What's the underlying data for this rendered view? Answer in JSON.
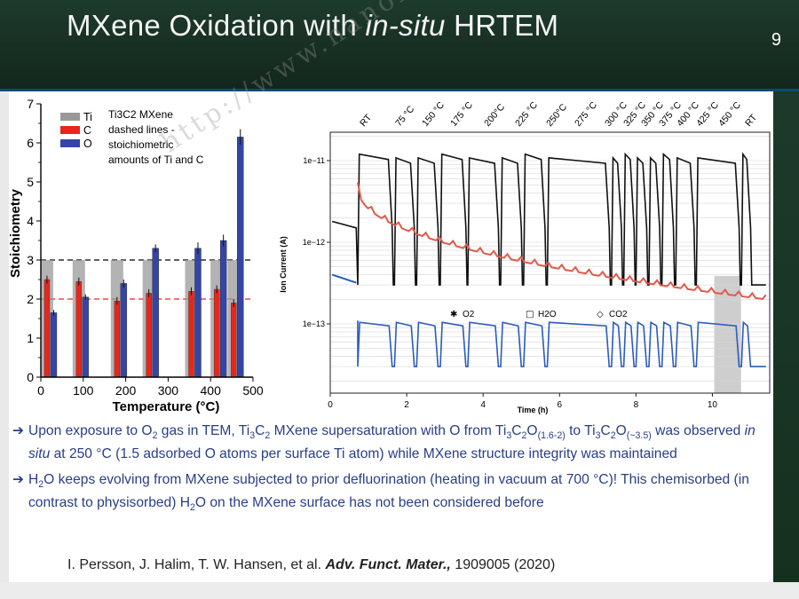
{
  "slide": {
    "title_pre": "MXene Oxidation with ",
    "title_em": "in-situ",
    "title_post": " HRTEM",
    "number": "9"
  },
  "chart_data": [
    {
      "type": "bar",
      "xlabel": "Temperature (°C)",
      "ylabel": "Stoichiometry",
      "xlim": [
        0,
        500
      ],
      "ylim": [
        0,
        7
      ],
      "xticks": [
        0,
        100,
        200,
        300,
        400,
        500
      ],
      "yticks": [
        0,
        1,
        2,
        3,
        4,
        5,
        6,
        7
      ],
      "x": [
        25,
        100,
        190,
        265,
        365,
        425,
        465
      ],
      "series": [
        {
          "name": "Ti",
          "color": "#999999",
          "values": [
            3,
            3,
            3,
            3,
            3,
            3,
            3
          ]
        },
        {
          "name": "C",
          "color": "#e8261c",
          "values": [
            2.5,
            2.45,
            1.95,
            2.15,
            2.2,
            2.25,
            1.9
          ]
        },
        {
          "name": "O",
          "color": "#3545a7",
          "values": [
            1.65,
            2.05,
            2.4,
            3.3,
            3.3,
            3.5,
            6.15
          ]
        }
      ],
      "errors": {
        "C": [
          0.1,
          0.1,
          0.1,
          0.1,
          0.1,
          0.1,
          0.1
        ],
        "O": [
          0.07,
          0.07,
          0.1,
          0.1,
          0.15,
          0.15,
          0.2
        ]
      },
      "reference_lines": [
        {
          "y": 3,
          "style": "dashed",
          "color": "#000000"
        },
        {
          "y": 2,
          "style": "dashed",
          "color": "#e8261c"
        }
      ],
      "annotation": [
        "Ti3C2 MXene",
        "dashed lines -",
        "stoichiometric",
        "amounts of Ti and C"
      ],
      "legend_position": "top-left"
    },
    {
      "type": "line",
      "xlabel": "Time (h)",
      "ylabel": "Ion Current (A)",
      "xlim": [
        0,
        11.5
      ],
      "yscale": "log",
      "xticks": [
        0,
        2,
        4,
        6,
        8,
        10
      ],
      "ytick_labels": [
        "1e−11",
        "1e−12",
        "1e−13"
      ],
      "temperature_labels": [
        "RT",
        "75 °C",
        "150 °C",
        "175 °C",
        "200°C",
        "225 °C",
        "250°C",
        "275 °C",
        "300 °C",
        "325 °C",
        "350 °C",
        "375 °C",
        "400 °C",
        "425 °C",
        "450 °C",
        "RT"
      ],
      "legend": [
        "O2",
        "H2O",
        "CO2"
      ],
      "series": [
        {
          "name": "O2",
          "color": "#111111",
          "baseline_level": 3e-13,
          "high_level": 1.2e-11
        },
        {
          "name": "H2O",
          "color": "#e05a4a",
          "start_level": 5e-12,
          "end_level": 2.1e-13
        },
        {
          "name": "CO2",
          "color": "#2c5bbd",
          "baseline_level": 3e-14,
          "high_level": 1.1e-13
        }
      ],
      "highlight_band_h": [
        10.05,
        10.75
      ]
    }
  ],
  "bullets": {
    "b1": {
      "p1": "Upon exposure to O",
      "s1": "2",
      "p2": " gas in TEM, Ti",
      "s2": "3",
      "p3": "C",
      "s3": "2",
      "p4": " MXene supersaturation with O from Ti",
      "s4": "3",
      "p5": "C",
      "s5": "2",
      "p6": "O",
      "s6": "(1.6-2)",
      "p7": " to Ti",
      "s7": "3",
      "p8": "C",
      "s8": "2",
      "p9": "O",
      "s9": "(~3.5)",
      "p10": " was observed ",
      "em": "in situ",
      "p11": " at 250 °C (1.5 adsorbed O atoms per surface Ti atom) while MXene structure integrity was maintained"
    },
    "b2": {
      "p1": "H",
      "s1": "2",
      "p2": "O keeps evolving from MXene subjected to prior defluorination (heating in vacuum at 700 °C)! This chemisorbed (in contrast to physisorbed) H",
      "s2": "2",
      "p3": "O on the MXene surface has not been considered before"
    }
  },
  "citation": {
    "authors": "I. Persson, J. Halim, T. W. Hansen, et al. ",
    "journal": "Adv. Funct. Mater.,",
    "ref": " 1909005 (2020)"
  },
  "watermark": "http://www.nanomxenes.com"
}
